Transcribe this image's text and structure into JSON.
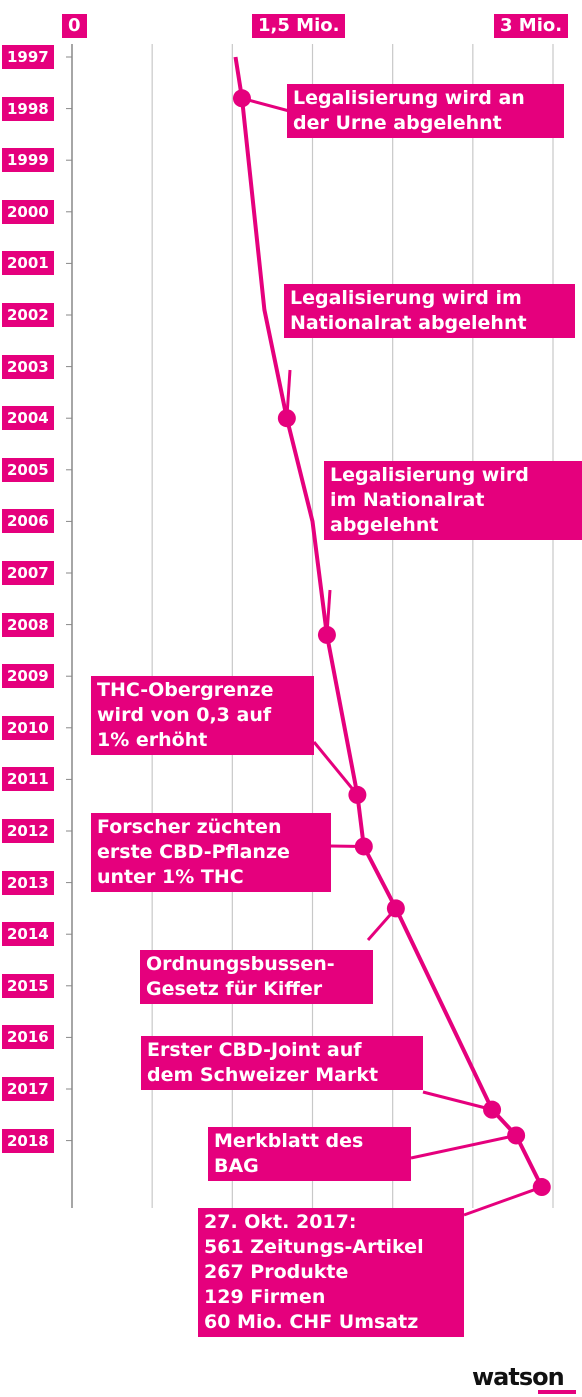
{
  "chart_data": {
    "type": "line",
    "x_axis": {
      "range": [
        0,
        3000000
      ],
      "tick_labels": [
        "0",
        "1,5 Mio.",
        "3 Mio."
      ]
    },
    "years": [
      "1997",
      "1998",
      "1999",
      "2000",
      "2001",
      "2002",
      "2003",
      "2004",
      "2005",
      "2006",
      "2007",
      "2008",
      "2009",
      "2010",
      "2011",
      "2012",
      "2013",
      "2014",
      "2015",
      "2016",
      "2017",
      "2018"
    ],
    "series": [
      {
        "points": [
          {
            "y": 1997.0,
            "x": 1020000
          },
          {
            "y": 1997.8,
            "x": 1060000
          },
          {
            "y": 2001.9,
            "x": 1200000
          },
          {
            "y": 2004.0,
            "x": 1340000
          },
          {
            "y": 2006.0,
            "x": 1500000
          },
          {
            "y": 2008.2,
            "x": 1590000
          },
          {
            "y": 2011.3,
            "x": 1780000
          },
          {
            "y": 2012.3,
            "x": 1820000
          },
          {
            "y": 2013.5,
            "x": 2020000
          },
          {
            "y": 2017.4,
            "x": 2620000
          },
          {
            "y": 2017.9,
            "x": 2770000
          },
          {
            "y": 2018.9,
            "x": 2930000
          }
        ]
      }
    ],
    "grid": "vertical",
    "color": "#e5007d"
  },
  "events": [
    {
      "y": 1997.8,
      "x": 1060000,
      "lines": [
        "Legalisierung wird an",
        "der Urne abgelehnt"
      ]
    },
    {
      "y": 2004.0,
      "x": 1340000,
      "lines": [
        "Legalisierung wird im",
        "Nationalrat abgelehnt"
      ]
    },
    {
      "y": 2008.2,
      "x": 1590000,
      "lines": [
        "Legalisierung wird",
        "im Nationalrat",
        "abgelehnt"
      ]
    },
    {
      "y": 2011.3,
      "x": 1780000,
      "lines": [
        "THC-Obergrenze",
        "wird von 0,3 auf",
        "1% erhöht"
      ]
    },
    {
      "y": 2012.3,
      "x": 1820000,
      "lines": [
        "Forscher züchten",
        "erste CBD-Pflanze",
        "unter 1% THC"
      ]
    },
    {
      "y": 2013.5,
      "x": 2020000,
      "lines": [
        "Ordnungsbussen-",
        "Gesetz für Kiffer"
      ]
    },
    {
      "y": 2017.4,
      "x": 2620000,
      "lines": [
        "Erster CBD-Joint auf",
        "dem Schweizer Markt"
      ]
    },
    {
      "y": 2017.9,
      "x": 2770000,
      "lines": [
        "Merkblatt des",
        "BAG"
      ]
    },
    {
      "y": 2018.9,
      "x": 2930000,
      "lines": [
        "27. Okt. 2017:",
        "561 Zeitungs-Artikel",
        "267 Produkte",
        "129 Firmen",
        "60 Mio. CHF Umsatz"
      ]
    }
  ],
  "branding": {
    "logo": "watson",
    "color": "#e5007d"
  }
}
